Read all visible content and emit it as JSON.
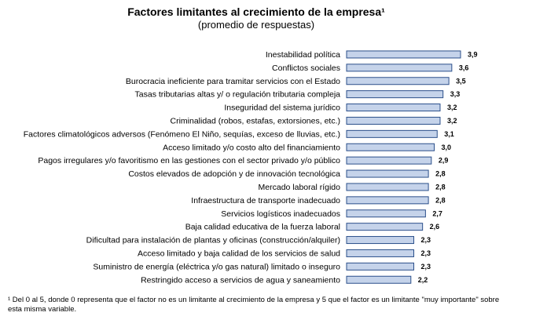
{
  "chart_data": {
    "type": "bar",
    "orientation": "horizontal",
    "title": "Factores limitantes al crecimiento de la empresa¹",
    "subtitle": "(promedio de respuestas)",
    "xlim": [
      0,
      3.9
    ],
    "grid": false,
    "categories": [
      "Inestabilidad política",
      "Conflictos sociales",
      "Burocracia ineficiente para tramitar servicios con el Estado",
      "Tasas tributarias altas y/ o regulación tributaria compleja",
      "Inseguridad del sistema jurídico",
      "Criminalidad (robos, estafas, extorsiones, etc.)",
      "Factores climatológicos adversos (Fenómeno El Niño, sequías, exceso de lluvias, etc.)",
      "Acceso limitado y/o costo alto del financiamiento",
      "Pagos irregulares y/o favoritismo en las gestiones con el sector privado y/o público",
      "Costos elevados de adopción y de innovación tecnológica",
      "Mercado laboral rígido",
      "Infraestructura de transporte inadecuado",
      "Servicios logísticos inadecuados",
      "Baja calidad educativa de la fuerza laboral",
      "Dificultad para instalación de plantas y oficinas (construcción/alquiler)",
      "Acceso limitado y baja calidad de los servicios de salud",
      "Suministro de energía (eléctrica y/o gas natural) limitado o inseguro",
      "Restringido acceso a servicios de agua y saneamiento"
    ],
    "values": [
      3.9,
      3.6,
      3.5,
      3.3,
      3.2,
      3.2,
      3.1,
      3.0,
      2.9,
      2.8,
      2.8,
      2.8,
      2.7,
      2.6,
      2.3,
      2.3,
      2.3,
      2.2
    ],
    "value_labels": [
      "3,9",
      "3,6",
      "3,5",
      "3,3",
      "3,2",
      "3,2",
      "3,1",
      "3,0",
      "2,9",
      "2,8",
      "2,8",
      "2,8",
      "2,7",
      "2,6",
      "2,3",
      "2,3",
      "2,3",
      "2,2"
    ],
    "bar_color": "#c5d3ea",
    "bar_border": "#2b4f8a",
    "footnote": "¹ Del 0 al 5, donde 0 representa que el factor no es un limitante al crecimiento de la empresa y 5 que el factor es un limitante \"muy importante\" sobre esta misma variable."
  }
}
